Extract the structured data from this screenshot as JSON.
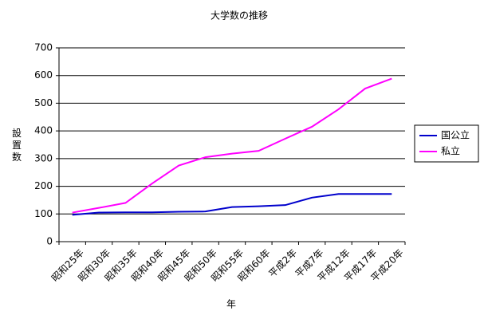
{
  "chart_data": {
    "type": "line",
    "title": "大学数の推移",
    "x_label": "年",
    "y_label": "設置数",
    "categories": [
      "昭和25年",
      "昭和30年",
      "昭和35年",
      "昭和40年",
      "昭和45年",
      "昭和50年",
      "昭和55年",
      "昭和60年",
      "平成2年",
      "平成7年",
      "平成12年",
      "平成17年",
      "平成20年"
    ],
    "series": [
      {
        "name": "国公立",
        "color": "#0000cc",
        "values": [
          97,
          105,
          106,
          106,
          108,
          109,
          125,
          128,
          132,
          159,
          172,
          172,
          172
        ]
      },
      {
        "name": "私立",
        "color": "#ff00ff",
        "values": [
          105,
          122,
          140,
          210,
          275,
          305,
          318,
          328,
          372,
          415,
          478,
          553,
          589
        ]
      }
    ],
    "ylim": [
      0,
      700
    ],
    "yticks": [
      0,
      100,
      200,
      300,
      400,
      500,
      600,
      700
    ],
    "grid": true,
    "legend": "right"
  }
}
